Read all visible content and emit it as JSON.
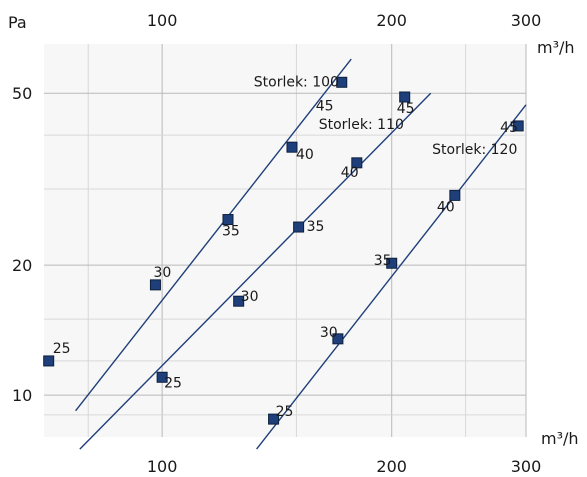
{
  "chart_data": {
    "type": "line",
    "x_scale": "log",
    "y_scale": "log",
    "xlim": [
      70,
      300
    ],
    "ylim": [
      8,
      65
    ],
    "grid": true,
    "ylabel": "Pa",
    "xlabel_top": "m³/h",
    "xlabel_bottom": "m³/h",
    "x_ticks_top": [
      {
        "value": 100,
        "label": "100"
      },
      {
        "value": 200,
        "label": "200"
      },
      {
        "value": 300,
        "label": "300"
      }
    ],
    "x_ticks_bottom": [
      {
        "value": 100,
        "label": "100"
      },
      {
        "value": 200,
        "label": "200"
      },
      {
        "value": 300,
        "label": "300"
      }
    ],
    "y_ticks": [
      {
        "value": 10,
        "label": "10"
      },
      {
        "value": 20,
        "label": "20"
      },
      {
        "value": 50,
        "label": "50"
      }
    ],
    "x_grid_lines": [
      80,
      100,
      150,
      200,
      250,
      300
    ],
    "y_grid_lines": [
      9,
      10,
      12,
      15,
      20,
      30,
      40,
      50
    ],
    "line_color": "#1f3f7a",
    "marker_color": "#1f3f7a",
    "series": [
      {
        "name": "Storlek: 100",
        "line": [
          [
            77,
            9.2
          ],
          [
            177,
            60
          ]
        ],
        "points": [
          {
            "x": 71,
            "y": 12.0,
            "label": "25"
          },
          {
            "x": 98,
            "y": 18.0,
            "label": "30"
          },
          {
            "x": 122,
            "y": 25.5,
            "label": "35"
          },
          {
            "x": 148,
            "y": 37.5,
            "label": "40"
          },
          {
            "x": 172,
            "y": 53.0,
            "label": "45"
          }
        ]
      },
      {
        "name": "Storlek: 110",
        "line": [
          [
            78,
            7.5
          ],
          [
            225,
            50
          ]
        ],
        "points": [
          {
            "x": 100,
            "y": 11.0,
            "label": "25"
          },
          {
            "x": 126,
            "y": 16.5,
            "label": "30"
          },
          {
            "x": 151,
            "y": 24.5,
            "label": "35"
          },
          {
            "x": 180,
            "y": 34.5,
            "label": "40"
          },
          {
            "x": 208,
            "y": 49.0,
            "label": "45"
          }
        ]
      },
      {
        "name": "Storlek: 120",
        "line": [
          [
            133,
            7.5
          ],
          [
            300,
            47
          ]
        ],
        "points": [
          {
            "x": 140,
            "y": 8.8,
            "label": "25"
          },
          {
            "x": 170,
            "y": 13.5,
            "label": "30"
          },
          {
            "x": 200,
            "y": 20.2,
            "label": "35"
          },
          {
            "x": 242,
            "y": 29.0,
            "label": "40"
          },
          {
            "x": 293,
            "y": 42.0,
            "label": "45"
          }
        ]
      }
    ]
  }
}
